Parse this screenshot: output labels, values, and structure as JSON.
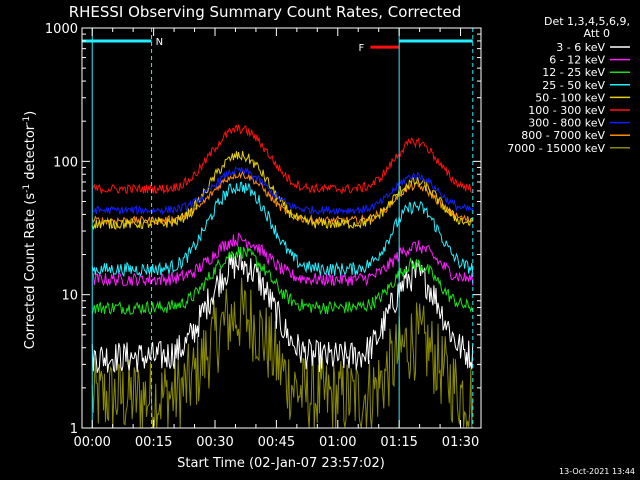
{
  "chart_data": {
    "type": "line",
    "title": "RHESSI Observing Summary Count Rates, Corrected",
    "xlabel": "Start Time (02-Jan-07 23:57:02)",
    "ylabel_main": "Corrected Count Rate (s",
    "ylabel_sup1": "-1",
    "ylabel_mid": " detector",
    "ylabel_sup2": "-1",
    "ylabel_end": ")",
    "yscale": "log",
    "ylim": [
      1,
      1000
    ],
    "xlim_minutes": [
      -2.5,
      95
    ],
    "x_ticks": [
      {
        "m": 0,
        "label": "00:00"
      },
      {
        "m": 15,
        "label": "00:15"
      },
      {
        "m": 30,
        "label": "00:30"
      },
      {
        "m": 45,
        "label": "00:45"
      },
      {
        "m": 60,
        "label": "01:00"
      },
      {
        "m": 75,
        "label": "01:15"
      },
      {
        "m": 90,
        "label": "01:30"
      }
    ],
    "y_ticks": [
      {
        "v": 1,
        "label": "1"
      },
      {
        "v": 10,
        "label": "10"
      },
      {
        "v": 100,
        "label": "100"
      },
      {
        "v": 1000,
        "label": "1000"
      }
    ],
    "legend_header": [
      "Det 1,3,4,5,6,9,",
      "Att 0"
    ],
    "series": [
      {
        "name": "3 - 6 keV",
        "color": "#ffffff",
        "base": 3.4,
        "peak1": 17,
        "peak2": 14,
        "noise": 0.12
      },
      {
        "name": "6 - 12 keV",
        "color": "#ff1dff",
        "base": 13,
        "peak1": 26,
        "peak2": 23,
        "noise": 0.05
      },
      {
        "name": "12 - 25 keV",
        "color": "#18e018",
        "base": 8,
        "peak1": 21,
        "peak2": 17,
        "noise": 0.05
      },
      {
        "name": "25 - 50 keV",
        "color": "#22eeff",
        "base": 15.5,
        "peak1": 65,
        "peak2": 46,
        "noise": 0.05
      },
      {
        "name": "50 - 100 keV",
        "color": "#e8d000",
        "base": 34,
        "peak1": 110,
        "peak2": 70,
        "noise": 0.04
      },
      {
        "name": "100 - 300 keV",
        "color": "#ff1010",
        "base": 62,
        "peak1": 175,
        "peak2": 140,
        "noise": 0.035
      },
      {
        "name": "300 - 800 keV",
        "color": "#1020ff",
        "base": 43,
        "peak1": 85,
        "peak2": 78,
        "noise": 0.03
      },
      {
        "name": "800 - 7000 keV",
        "color": "#ff8c00",
        "base": 36,
        "peak1": 80,
        "peak2": 65,
        "noise": 0.03
      },
      {
        "name": "7000 - 15000 keV",
        "color": "#8a8a00",
        "base": 1.7,
        "peak1": 7,
        "peak2": 4.5,
        "noise": 0.3
      }
    ],
    "flag_bars": [
      {
        "label": "N",
        "color": "#22eeff",
        "from": -2.5,
        "to": 14.5,
        "y": 1000
      },
      {
        "label": "F",
        "color": "#ff1010",
        "from": 68,
        "to": 75,
        "y": 900
      },
      {
        "label": "",
        "color": "#22eeff",
        "from": 75,
        "to": 93,
        "y": 1000
      }
    ],
    "vlines": [
      {
        "m": 0,
        "color": "#22eeff",
        "style": "solid"
      },
      {
        "m": 14.5,
        "color": "#22eeff",
        "style": "dashed"
      },
      {
        "m": 75,
        "color": "#22eeff",
        "style": "solid"
      },
      {
        "m": 93,
        "color": "#22eeff",
        "style": "dashed"
      }
    ]
  },
  "footer_timestamp": "13-Oct-2021 13:44"
}
